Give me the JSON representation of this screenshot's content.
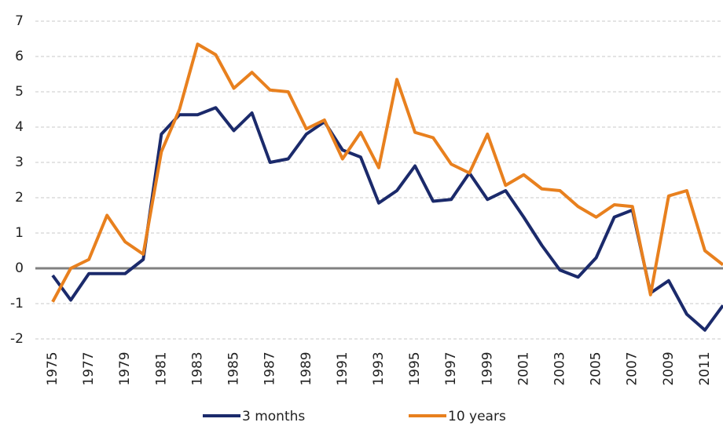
{
  "chart_data": {
    "type": "line",
    "categories": [
      "1975",
      null,
      "1977",
      null,
      "1979",
      null,
      "1981",
      null,
      "1983",
      null,
      "1985",
      null,
      "1987",
      null,
      "1989",
      null,
      "1991",
      null,
      "1993",
      null,
      "1995",
      null,
      "1997",
      null,
      "1999",
      null,
      "2001",
      null,
      "2003",
      null,
      "2005",
      null,
      "2007",
      null,
      "2009",
      null,
      "2011",
      null
    ],
    "series": [
      {
        "name": "3 months",
        "color": "#1b2a6b",
        "values": [
          -0.2,
          -0.9,
          -0.15,
          -0.15,
          -0.15,
          0.25,
          3.8,
          4.35,
          4.35,
          4.55,
          3.9,
          4.4,
          3.0,
          3.1,
          3.8,
          4.15,
          3.35,
          3.15,
          1.85,
          2.2,
          2.9,
          1.9,
          1.95,
          2.7,
          1.95,
          2.2,
          1.45,
          0.65,
          -0.05,
          -0.25,
          0.3,
          1.45,
          1.65,
          -0.7,
          -0.35,
          -1.3,
          -1.75,
          -1.05
        ]
      },
      {
        "name": "10 years",
        "color": "#e8801e",
        "values": [
          -0.95,
          0.0,
          0.25,
          1.5,
          0.75,
          0.4,
          3.3,
          4.5,
          6.35,
          6.05,
          5.1,
          5.55,
          5.05,
          5.0,
          3.95,
          4.2,
          3.1,
          3.85,
          2.85,
          5.35,
          3.85,
          3.7,
          2.95,
          2.7,
          3.8,
          2.35,
          2.65,
          2.25,
          2.2,
          1.75,
          1.45,
          1.8,
          1.75,
          -0.75,
          2.05,
          2.2,
          0.5,
          0.1
        ]
      }
    ],
    "ylim": [
      -2,
      7
    ],
    "yticks": [
      -2,
      -1,
      0,
      1,
      2,
      3,
      4,
      5,
      6,
      7
    ],
    "grid": true,
    "legend": "bottom"
  }
}
